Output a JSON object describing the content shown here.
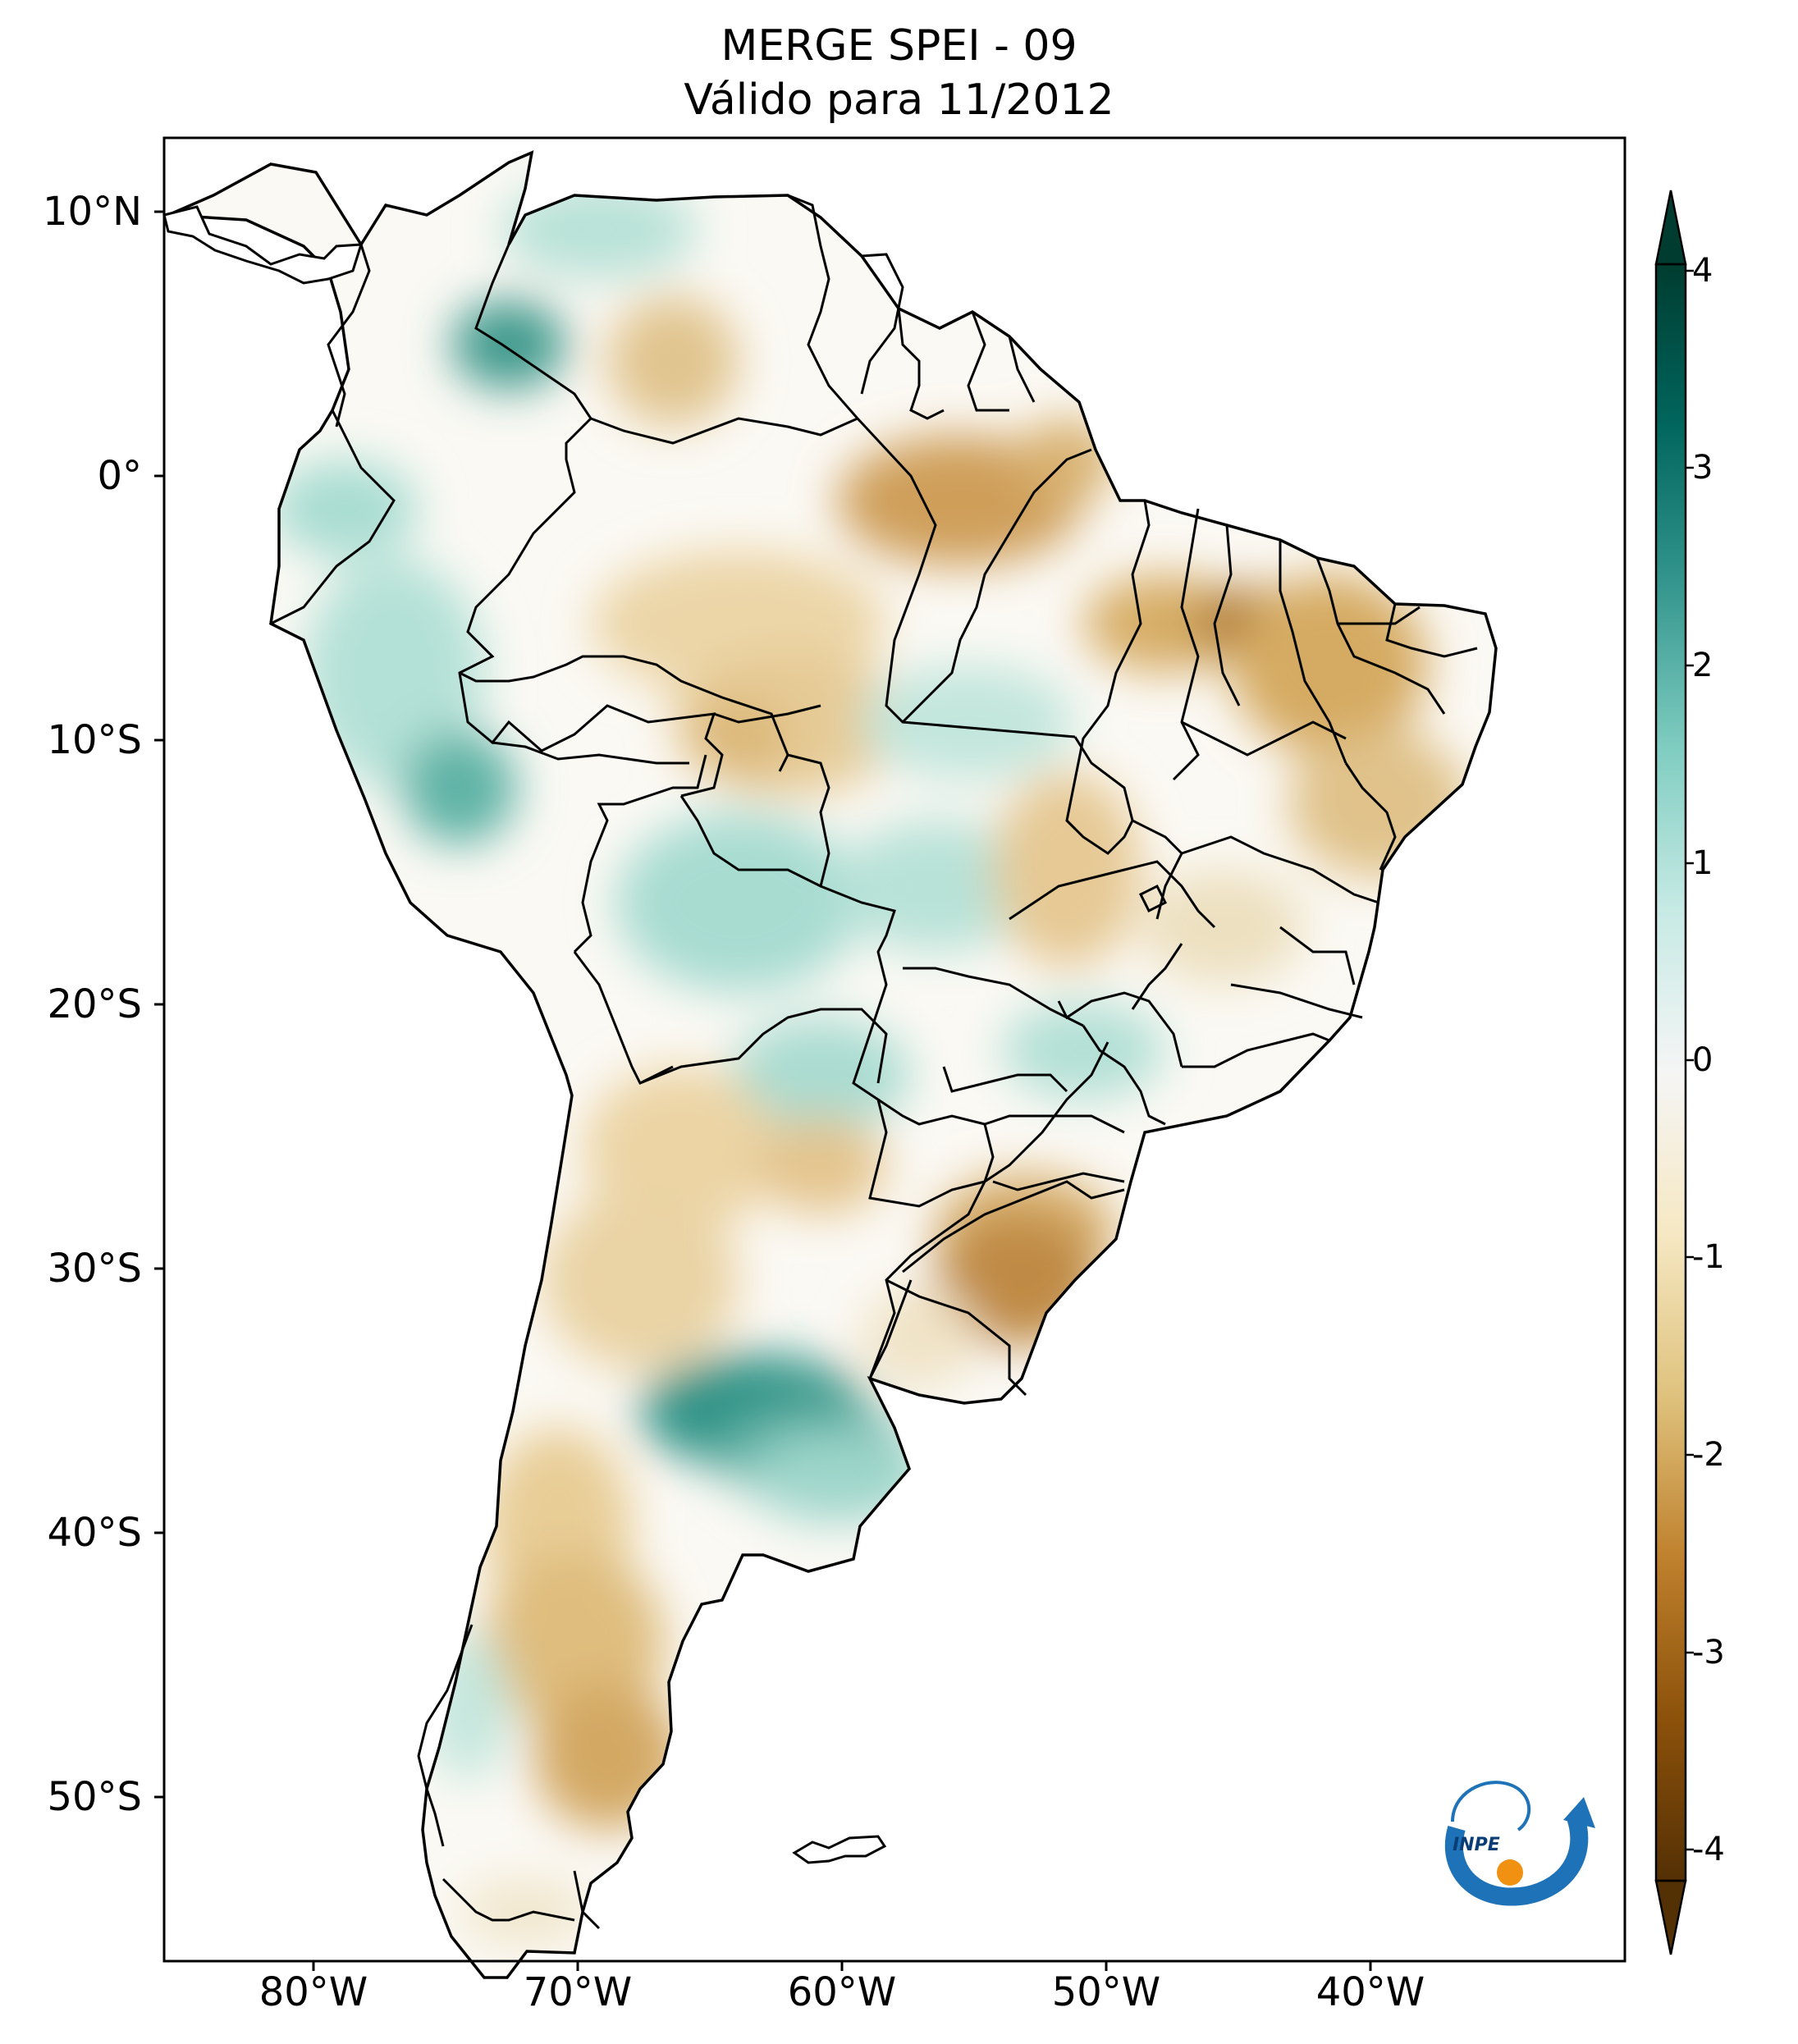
{
  "title": {
    "line1": "MERGE   SPEI - 09",
    "line2": "Válido para 11/2012"
  },
  "map": {
    "extent_lon": [
      -85,
      -32
    ],
    "extent_lat": [
      -56,
      13
    ],
    "lat_ticks": [
      "10°N",
      "0°",
      "10°S",
      "20°S",
      "30°S",
      "40°S",
      "50°S"
    ],
    "lon_ticks": [
      "80°W",
      "70°W",
      "60°W",
      "50°W",
      "40°W"
    ]
  },
  "colorbar": {
    "min": -4,
    "max": 4,
    "ticks": [
      "4",
      "3",
      "2",
      "1",
      "0",
      "-1",
      "-2",
      "-3",
      "-4"
    ],
    "extend": "both",
    "colors": [
      "#543005",
      "#8c510a",
      "#bf812d",
      "#dfc27d",
      "#f6e8c3",
      "#f5f5f5",
      "#c7eae5",
      "#80cdc1",
      "#35978f",
      "#01665e",
      "#003c30"
    ]
  },
  "logo": {
    "text": "INPE"
  }
}
